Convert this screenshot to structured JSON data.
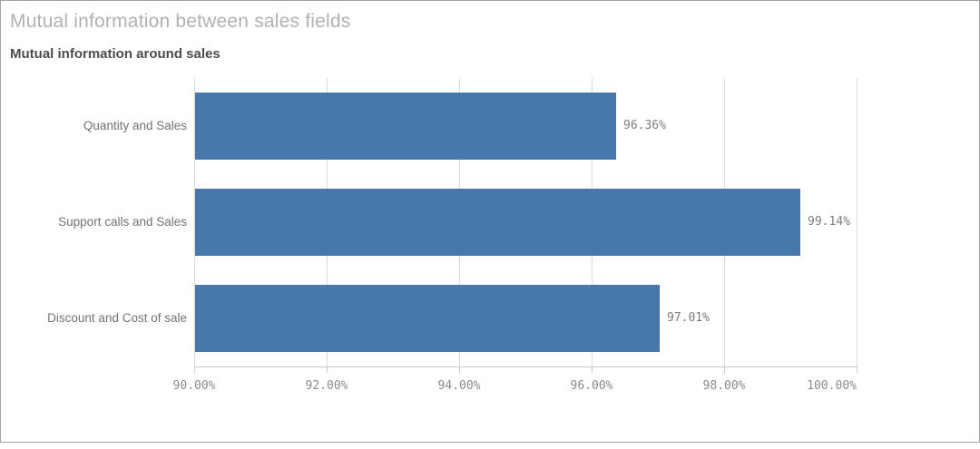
{
  "header": {
    "title": "Mutual information between sales fields",
    "subtitle": "Mutual information around sales"
  },
  "colors": {
    "bar": "#4678ab",
    "container_border": "#a3a3a3",
    "gridline": "#d9d9d9",
    "axis_line": "#c9c9c9",
    "title_text": "#b1b1b1",
    "subtitle_text": "#4c4c4c",
    "category_text": "#737373",
    "value_text": "#7c7c7c",
    "tick_text": "#8a8a8a"
  },
  "chart_data": {
    "type": "bar",
    "orientation": "horizontal",
    "title": "Mutual information between sales fields",
    "subtitle": "Mutual information around sales",
    "categories": [
      "Quantity and Sales",
      "Support calls and Sales",
      "Discount and Cost of sale"
    ],
    "values": [
      96.36,
      99.14,
      97.01
    ],
    "value_labels": [
      "96.36%",
      "99.14%",
      "97.01%"
    ],
    "xlim": [
      90,
      100
    ],
    "x_ticks": [
      90,
      92,
      94,
      96,
      98,
      100
    ],
    "x_tick_labels": [
      "90.00%",
      "92.00%",
      "94.00%",
      "96.00%",
      "98.00%",
      "100.00%"
    ],
    "xlabel": "",
    "ylabel": "",
    "grid": true,
    "legend": false
  }
}
